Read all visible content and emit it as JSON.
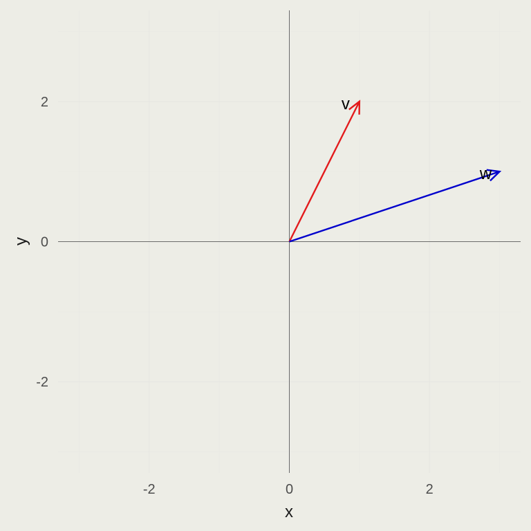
{
  "chart_data": {
    "type": "vector",
    "title": "",
    "xlabel": "x",
    "ylabel": "y",
    "xlim": [
      -3.3,
      3.3
    ],
    "ylim": [
      -3.3,
      3.3
    ],
    "x_ticks": [
      -2,
      0,
      2
    ],
    "y_ticks": [
      -2,
      0,
      2
    ],
    "x_tick_labels": [
      "-2",
      "0",
      "2"
    ],
    "y_tick_labels": [
      "-2",
      "0",
      "2"
    ],
    "grid": true,
    "reference_lines": {
      "x": 0,
      "y": 0
    },
    "vectors": [
      {
        "label": "v",
        "from": [
          0,
          0
        ],
        "to": [
          1,
          2
        ],
        "color": "#e31a1c"
      },
      {
        "label": "w",
        "from": [
          0,
          0
        ],
        "to": [
          3,
          1
        ],
        "color": "#0000cc"
      }
    ],
    "background": "#ededE6"
  }
}
